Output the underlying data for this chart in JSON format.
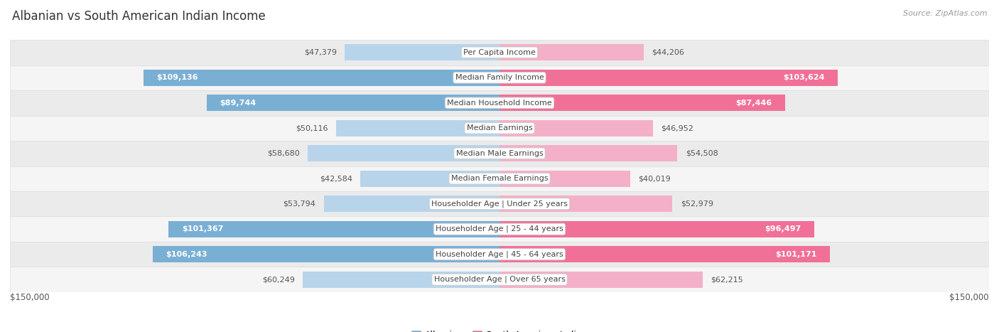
{
  "title": "Albanian vs South American Indian Income",
  "source": "Source: ZipAtlas.com",
  "categories": [
    "Per Capita Income",
    "Median Family Income",
    "Median Household Income",
    "Median Earnings",
    "Median Male Earnings",
    "Median Female Earnings",
    "Householder Age | Under 25 years",
    "Householder Age | 25 - 44 years",
    "Householder Age | 45 - 64 years",
    "Householder Age | Over 65 years"
  ],
  "albanian_values": [
    47379,
    109136,
    89744,
    50116,
    58680,
    42584,
    53794,
    101367,
    106243,
    60249
  ],
  "south_american_values": [
    44206,
    103624,
    87446,
    46952,
    54508,
    40019,
    52979,
    96497,
    101171,
    62215
  ],
  "albanian_labels": [
    "$47,379",
    "$109,136",
    "$89,744",
    "$50,116",
    "$58,680",
    "$42,584",
    "$53,794",
    "$101,367",
    "$106,243",
    "$60,249"
  ],
  "south_american_labels": [
    "$44,206",
    "$103,624",
    "$87,446",
    "$46,952",
    "$54,508",
    "$40,019",
    "$52,979",
    "$96,497",
    "$101,171",
    "$62,215"
  ],
  "alb_large_color": "#7aafd4",
  "alb_small_color": "#b8d4ea",
  "sam_large_color": "#f07098",
  "sam_small_color": "#f4b0c8",
  "large_threshold": 75000,
  "max_value": 150000,
  "row_colors": [
    "#ebebeb",
    "#f5f5f5"
  ],
  "row_border_color": "#dddddd",
  "center_label_bg": "#ffffff",
  "center_label_border": "#cccccc",
  "xlabel_left": "$150,000",
  "xlabel_right": "$150,000",
  "legend_albanian": "Albanian",
  "legend_south_american": "South American Indian"
}
